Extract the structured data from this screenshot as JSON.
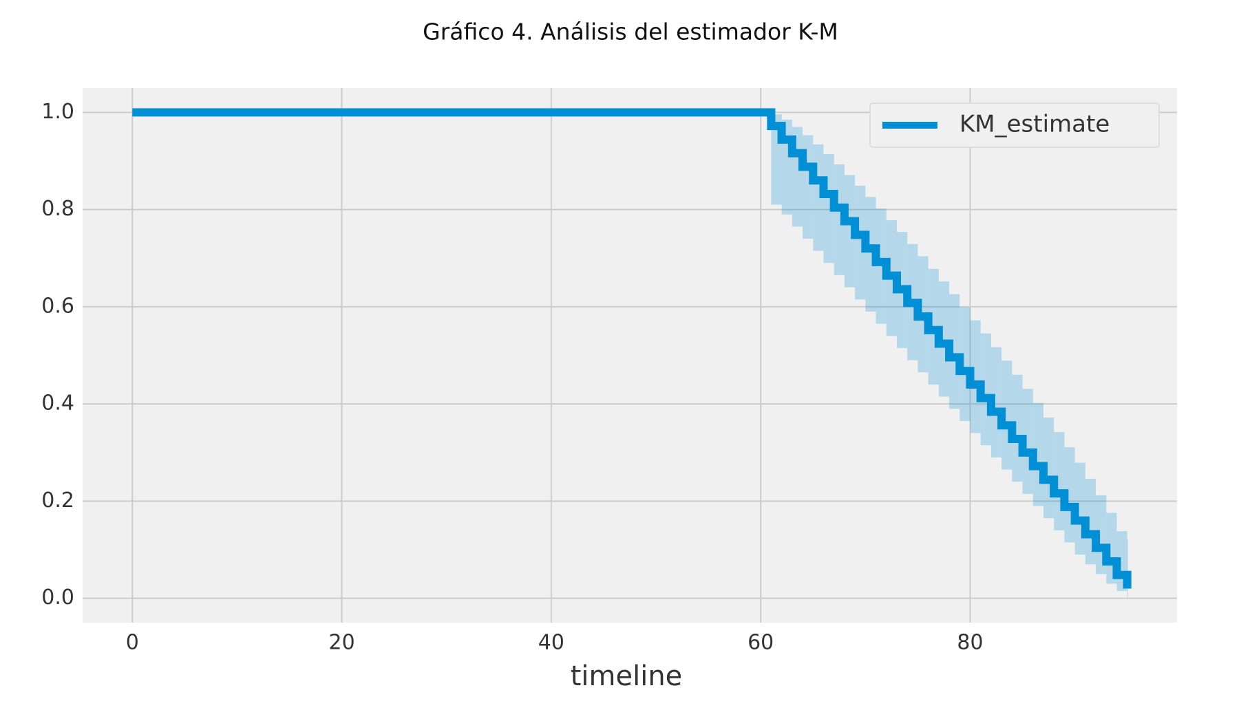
{
  "chart_data": {
    "type": "line",
    "title": "Gráfico 4. Análisis del estimador K-M",
    "xlabel": "timeline",
    "x": [
      0,
      61,
      62,
      63,
      64,
      65,
      66,
      67,
      68,
      69,
      70,
      71,
      72,
      73,
      74,
      75,
      76,
      77,
      78,
      79,
      80,
      81,
      82,
      83,
      84,
      85,
      86,
      87,
      88,
      89,
      90,
      91,
      92,
      93,
      94,
      95
    ],
    "series": [
      {
        "name": "KM_estimate",
        "color": "#008fd5",
        "values": [
          1,
          0.972,
          0.944,
          0.916,
          0.888,
          0.86,
          0.832,
          0.804,
          0.776,
          0.748,
          0.72,
          0.692,
          0.664,
          0.636,
          0.608,
          0.58,
          0.552,
          0.524,
          0.496,
          0.468,
          0.44,
          0.412,
          0.384,
          0.356,
          0.328,
          0.3,
          0.272,
          0.244,
          0.216,
          0.188,
          0.16,
          0.132,
          0.104,
          0.076,
          0.048,
          0.02
        ],
        "ci_upper": [
          1,
          0.996,
          0.985,
          0.97,
          0.953,
          0.934,
          0.914,
          0.893,
          0.871,
          0.849,
          0.826,
          0.802,
          0.778,
          0.754,
          0.729,
          0.704,
          0.678,
          0.652,
          0.626,
          0.599,
          0.572,
          0.545,
          0.517,
          0.489,
          0.46,
          0.431,
          0.402,
          0.372,
          0.342,
          0.311,
          0.279,
          0.246,
          0.212,
          0.176,
          0.138,
          0.12
        ],
        "ci_lower": [
          1,
          0.81,
          0.79,
          0.765,
          0.74,
          0.715,
          0.69,
          0.665,
          0.64,
          0.615,
          0.59,
          0.565,
          0.54,
          0.515,
          0.49,
          0.465,
          0.44,
          0.415,
          0.39,
          0.365,
          0.34,
          0.315,
          0.29,
          0.265,
          0.24,
          0.215,
          0.19,
          0.165,
          0.14,
          0.115,
          0.09,
          0.07,
          0.05,
          0.03,
          0.015,
          0.002
        ]
      }
    ],
    "xlim": [
      -4.75,
      99.75
    ],
    "ylim": [
      -0.05,
      1.05
    ],
    "xticks": [
      0,
      20,
      40,
      60,
      80
    ],
    "yticks": [
      {
        "value": 0,
        "label": "0.0"
      },
      0.2,
      0.4,
      0.6,
      0.8,
      {
        "value": 1,
        "label": "1.0"
      }
    ],
    "grid": true,
    "legend": "upper right",
    "step": "post"
  }
}
